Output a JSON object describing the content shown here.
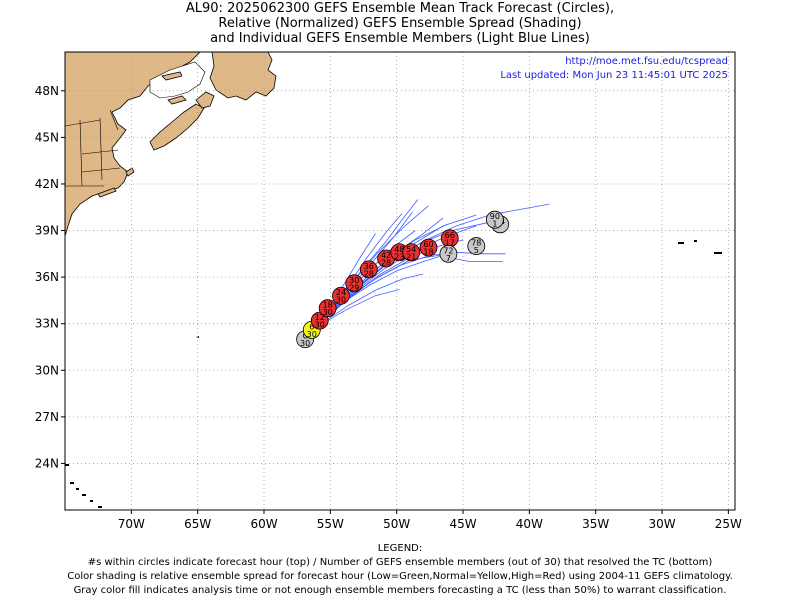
{
  "title": {
    "line1": "AL90: 2025062300 GEFS Ensemble Mean Track Forecast (Circles),",
    "line2": "Relative (Normalized) GEFS Ensemble Spread (Shading)",
    "line3": "and Individual GEFS Ensemble Members (Light Blue Lines)"
  },
  "source_url": "http://moe.met.fsu.edu/tcspread",
  "last_updated": "Last updated: Mon Jun 23 11:45:01 UTC 2025",
  "axes": {
    "lat_labels": [
      "48N",
      "45N",
      "42N",
      "39N",
      "36N",
      "33N",
      "30N",
      "27N",
      "24N"
    ],
    "lon_labels": [
      "70W",
      "65W",
      "60W",
      "55W",
      "50W",
      "45W",
      "40W",
      "35W",
      "30W",
      "25W"
    ]
  },
  "legend": {
    "heading": "LEGEND:",
    "line1": "#s within circles indicate forecast hour (top) / Number of GEFS ensemble members (out of 30) that resolved the TC (bottom)",
    "line2": "Color shading is relative ensemble spread for forecast hour (Low=Green,Normal=Yellow,High=Red) using 2004-11 GEFS climatology.",
    "line3": "Gray color fill indicates analysis time or not enough ensemble members forecasting a TC (less than 50%) to warrant classification."
  },
  "colors": {
    "land": "#deb887",
    "ocean": "#ffffff",
    "member_tracks": "#3f5fff",
    "spread_normal": "#f5f516",
    "spread_high": "#e83030",
    "not_classified": "#c8c8c8"
  },
  "chart_data": {
    "type": "map",
    "lat_range": [
      21,
      50.5
    ],
    "lon_range": [
      -75,
      -24.5
    ],
    "grid": true,
    "mean_track": [
      {
        "hour": "0",
        "members": "30",
        "lon": -56.9,
        "lat": 32.0,
        "fill": "gray"
      },
      {
        "hour": "6",
        "members": "30",
        "lon": -56.4,
        "lat": 32.6,
        "fill": "yellow"
      },
      {
        "hour": "12",
        "members": "30",
        "lon": -55.8,
        "lat": 33.2,
        "fill": "red"
      },
      {
        "hour": "18",
        "members": "30",
        "lon": -55.2,
        "lat": 34.0,
        "fill": "red"
      },
      {
        "hour": "24",
        "members": "30",
        "lon": -54.2,
        "lat": 34.8,
        "fill": "red"
      },
      {
        "hour": "30",
        "members": "29",
        "lon": -53.2,
        "lat": 35.6,
        "fill": "red"
      },
      {
        "hour": "36",
        "members": "28",
        "lon": -52.1,
        "lat": 36.5,
        "fill": "red"
      },
      {
        "hour": "42",
        "members": "28",
        "lon": -50.8,
        "lat": 37.2,
        "fill": "red"
      },
      {
        "hour": "48",
        "members": "23",
        "lon": -49.8,
        "lat": 37.6,
        "fill": "red"
      },
      {
        "hour": "54",
        "members": "21",
        "lon": -48.9,
        "lat": 37.6,
        "fill": "red"
      },
      {
        "hour": "60",
        "members": "18",
        "lon": -47.6,
        "lat": 37.9,
        "fill": "red"
      },
      {
        "hour": "66",
        "members": "17",
        "lon": -46.0,
        "lat": 38.5,
        "fill": "red"
      },
      {
        "hour": "72",
        "members": "7",
        "lon": -46.1,
        "lat": 37.5,
        "fill": "gray"
      },
      {
        "hour": "78",
        "members": "5",
        "lon": -44.0,
        "lat": 38.0,
        "fill": "gray"
      },
      {
        "hour": "84",
        "members": "",
        "lon": -42.2,
        "lat": 39.4,
        "fill": "gray"
      },
      {
        "hour": "90",
        "members": "1",
        "lon": -42.6,
        "lat": 39.7,
        "fill": "gray"
      }
    ],
    "member_tracks": [
      [
        [
          -56.8,
          32.2
        ],
        [
          -55.5,
          33.4
        ],
        [
          -54.0,
          34.6
        ],
        [
          -52.0,
          36.2
        ],
        [
          -50.0,
          37.6
        ],
        [
          -48.0,
          38.8
        ],
        [
          -46.5,
          39.8
        ]
      ],
      [
        [
          -56.8,
          32.2
        ],
        [
          -55.6,
          33.2
        ],
        [
          -54.2,
          34.3
        ],
        [
          -52.5,
          35.7
        ],
        [
          -50.5,
          37.0
        ],
        [
          -48.0,
          38.3
        ],
        [
          -45.5,
          39.3
        ],
        [
          -43.0,
          40.0
        ],
        [
          -38.5,
          40.7
        ]
      ],
      [
        [
          -56.8,
          32.2
        ],
        [
          -55.3,
          33.6
        ],
        [
          -53.8,
          35.2
        ],
        [
          -52.2,
          36.9
        ],
        [
          -50.8,
          38.3
        ],
        [
          -49.5,
          39.8
        ],
        [
          -48.4,
          41.0
        ]
      ],
      [
        [
          -56.8,
          32.2
        ],
        [
          -55.4,
          33.5
        ],
        [
          -53.5,
          35.3
        ],
        [
          -51.8,
          37.0
        ],
        [
          -50.2,
          38.6
        ],
        [
          -48.8,
          40.2
        ]
      ],
      [
        [
          -56.8,
          32.2
        ],
        [
          -55.2,
          33.7
        ],
        [
          -53.4,
          35.6
        ],
        [
          -51.5,
          37.5
        ],
        [
          -49.5,
          39.2
        ],
        [
          -47.6,
          40.6
        ]
      ],
      [
        [
          -56.8,
          32.2
        ],
        [
          -55.6,
          33.3
        ],
        [
          -54.0,
          34.4
        ],
        [
          -52.0,
          35.5
        ],
        [
          -50.0,
          36.4
        ],
        [
          -48.0,
          37.0
        ],
        [
          -46.5,
          37.4
        ]
      ],
      [
        [
          -56.8,
          32.2
        ],
        [
          -55.5,
          33.1
        ],
        [
          -53.6,
          34.2
        ],
        [
          -51.5,
          35.2
        ],
        [
          -49.5,
          35.9
        ],
        [
          -48.0,
          36.2
        ]
      ],
      [
        [
          -56.8,
          32.2
        ],
        [
          -55.3,
          33.5
        ],
        [
          -53.2,
          35.0
        ],
        [
          -51.0,
          36.5
        ],
        [
          -48.5,
          37.8
        ],
        [
          -46.0,
          38.7
        ],
        [
          -44.0,
          39.3
        ]
      ],
      [
        [
          -56.8,
          32.2
        ],
        [
          -55.5,
          33.6
        ],
        [
          -54.0,
          35.5
        ],
        [
          -52.8,
          37.2
        ],
        [
          -51.6,
          38.8
        ]
      ],
      [
        [
          -56.8,
          32.2
        ],
        [
          -55.4,
          33.3
        ],
        [
          -53.5,
          34.9
        ],
        [
          -51.2,
          36.6
        ],
        [
          -48.8,
          38.1
        ],
        [
          -46.5,
          39.3
        ],
        [
          -44.0,
          40.0
        ]
      ],
      [
        [
          -56.8,
          32.2
        ],
        [
          -55.6,
          33.0
        ],
        [
          -53.8,
          33.9
        ],
        [
          -51.6,
          34.8
        ],
        [
          -49.8,
          35.2
        ]
      ],
      [
        [
          -56.8,
          32.2
        ],
        [
          -55.4,
          33.4
        ],
        [
          -53.6,
          34.7
        ],
        [
          -51.4,
          36.0
        ],
        [
          -49.0,
          37.1
        ],
        [
          -46.8,
          37.4
        ],
        [
          -44.5,
          37.0
        ],
        [
          -42.0,
          37.0
        ]
      ],
      [
        [
          -56.8,
          32.2
        ],
        [
          -55.3,
          33.6
        ],
        [
          -53.3,
          35.2
        ],
        [
          -51.0,
          36.9
        ],
        [
          -48.6,
          38.4
        ],
        [
          -46.2,
          39.4
        ]
      ],
      [
        [
          -56.8,
          32.2
        ],
        [
          -55.5,
          33.4
        ],
        [
          -53.7,
          35.0
        ],
        [
          -52.0,
          36.5
        ],
        [
          -50.3,
          37.9
        ],
        [
          -48.6,
          39.0
        ]
      ],
      [
        [
          -56.8,
          32.2
        ],
        [
          -55.3,
          33.4
        ],
        [
          -53.4,
          34.8
        ],
        [
          -51.2,
          36.2
        ],
        [
          -48.9,
          37.3
        ],
        [
          -46.8,
          38.0
        ],
        [
          -45.0,
          38.4
        ]
      ],
      [
        [
          -56.8,
          32.2
        ],
        [
          -55.5,
          33.2
        ],
        [
          -53.8,
          34.5
        ],
        [
          -51.8,
          35.8
        ],
        [
          -49.6,
          36.8
        ],
        [
          -47.5,
          37.4
        ],
        [
          -45.5,
          37.6
        ],
        [
          -43.5,
          37.5
        ],
        [
          -41.8,
          37.5
        ]
      ],
      [
        [
          -56.8,
          32.2
        ],
        [
          -55.4,
          33.5
        ],
        [
          -53.7,
          35.4
        ],
        [
          -52.2,
          37.3
        ],
        [
          -50.8,
          38.9
        ],
        [
          -49.6,
          40.1
        ]
      ],
      [
        [
          -56.8,
          32.2
        ],
        [
          -55.3,
          33.5
        ],
        [
          -53.2,
          35.1
        ],
        [
          -50.8,
          36.8
        ],
        [
          -48.2,
          38.2
        ],
        [
          -45.8,
          39.0
        ],
        [
          -43.2,
          39.5
        ]
      ]
    ]
  }
}
